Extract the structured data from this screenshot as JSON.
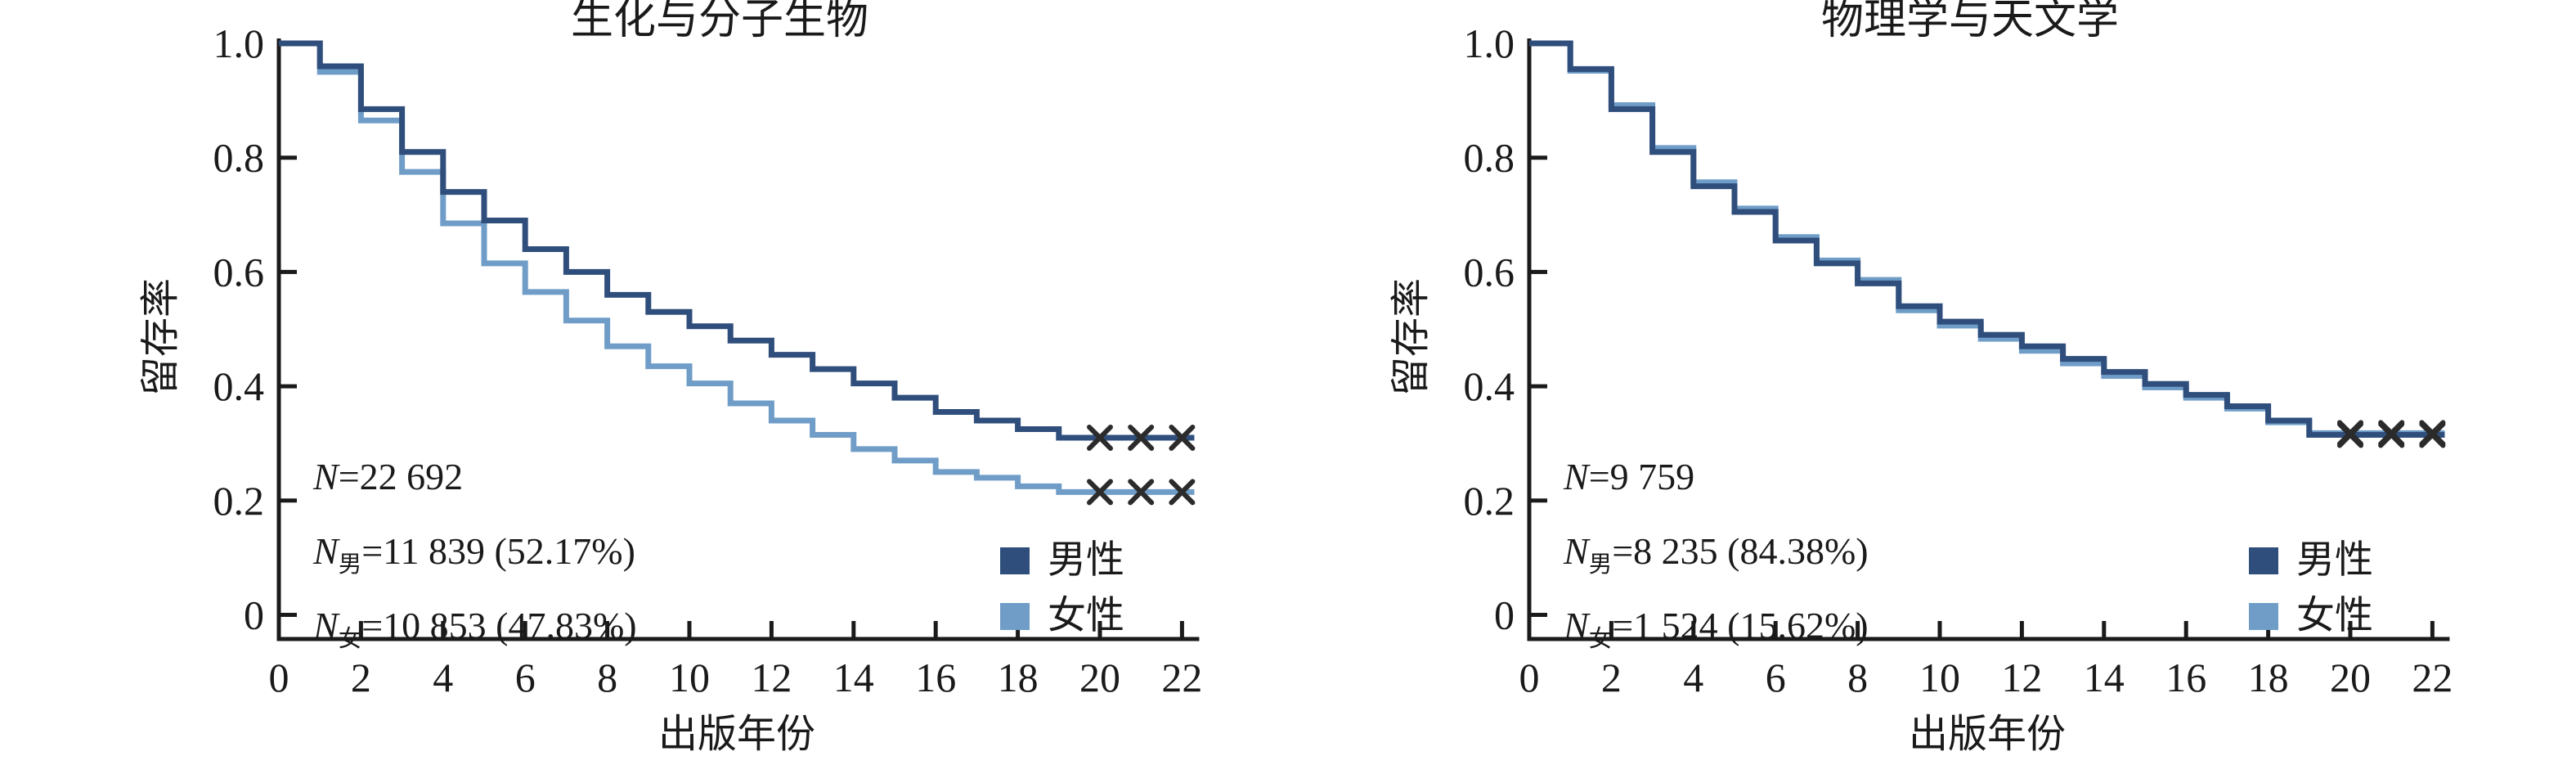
{
  "page": {
    "background": "#ffffff"
  },
  "colors": {
    "male": "#2f4e7c",
    "female": "#6f9dc8",
    "axis": "#1a1a1a",
    "text": "#1a1a1a",
    "censor": "#2b2b2b"
  },
  "chart_data": [
    {
      "type": "line",
      "subtype": "kaplan-meier-step-survival",
      "title": "生化与分子生物",
      "xlabel": "出版年份",
      "ylabel": "留存率",
      "xlim": [
        0,
        22.3
      ],
      "ylim": [
        0,
        1.0
      ],
      "grid": false,
      "legend_position": "lower-right-inside",
      "x_axis": {
        "tick_values": [
          0,
          2,
          4,
          6,
          8,
          10,
          12,
          14,
          16,
          18,
          20,
          22
        ],
        "tick_labels": [
          "0",
          "2",
          "4",
          "6",
          "8",
          "10",
          "12",
          "14",
          "16",
          "18",
          "20",
          "22"
        ]
      },
      "y_axis": {
        "tick_values": [
          1.0,
          0.8,
          0.6,
          0.4,
          0.2,
          0
        ],
        "tick_labels": [
          "1.0",
          "0.8",
          "0.6",
          "0.4",
          "0.2",
          "0"
        ]
      },
      "step_x": [
        0,
        1,
        2,
        3,
        4,
        5,
        6,
        7,
        8,
        9,
        10,
        11,
        12,
        13,
        14,
        15,
        16,
        17,
        18,
        19,
        20,
        21,
        22
      ],
      "series": [
        {
          "name": "男性",
          "color": "#2f4e7c",
          "values": [
            1.0,
            0.96,
            0.885,
            0.81,
            0.74,
            0.69,
            0.64,
            0.6,
            0.56,
            0.53,
            0.505,
            0.48,
            0.455,
            0.43,
            0.405,
            0.38,
            0.355,
            0.34,
            0.325,
            0.31,
            0.31,
            0.31,
            0.31
          ],
          "censor_x": [
            20,
            21,
            22
          ]
        },
        {
          "name": "女性",
          "color": "#6f9dc8",
          "values": [
            1.0,
            0.95,
            0.865,
            0.775,
            0.685,
            0.615,
            0.565,
            0.515,
            0.47,
            0.435,
            0.405,
            0.37,
            0.34,
            0.315,
            0.29,
            0.27,
            0.25,
            0.24,
            0.225,
            0.215,
            0.215,
            0.215,
            0.215
          ],
          "censor_x": [
            20,
            21,
            22
          ]
        }
      ],
      "annotation": [
        {
          "sym": "N",
          "sub": "",
          "rest": "=22 692"
        },
        {
          "sym": "N",
          "sub": "男",
          "rest": "=11 839 (52.17%)"
        },
        {
          "sym": "N",
          "sub": "女",
          "rest": "=10 853 (47.83%)"
        }
      ]
    },
    {
      "type": "line",
      "subtype": "kaplan-meier-step-survival",
      "title": "物理学与天文学",
      "xlabel": "出版年份",
      "ylabel": "留存率",
      "xlim": [
        0,
        22.3
      ],
      "ylim": [
        0,
        1.0
      ],
      "grid": false,
      "legend_position": "lower-right-inside",
      "x_axis": {
        "tick_values": [
          0,
          2,
          4,
          6,
          8,
          10,
          12,
          14,
          16,
          18,
          20,
          22
        ],
        "tick_labels": [
          "0",
          "2",
          "4",
          "6",
          "8",
          "10",
          "12",
          "14",
          "16",
          "18",
          "20",
          "22"
        ]
      },
      "y_axis": {
        "tick_values": [
          1.0,
          0.8,
          0.6,
          0.4,
          0.2,
          0
        ],
        "tick_labels": [
          "1.0",
          "0.8",
          "0.6",
          "0.4",
          "0.2",
          "0"
        ]
      },
      "step_x": [
        0,
        1,
        2,
        3,
        4,
        5,
        6,
        7,
        8,
        9,
        10,
        11,
        12,
        13,
        14,
        15,
        16,
        17,
        18,
        19,
        20,
        21,
        22
      ],
      "series": [
        {
          "name": "男性",
          "color": "#2f4e7c",
          "values": [
            1.0,
            0.955,
            0.885,
            0.81,
            0.75,
            0.705,
            0.655,
            0.615,
            0.58,
            0.54,
            0.513,
            0.49,
            0.47,
            0.448,
            0.425,
            0.404,
            0.385,
            0.365,
            0.34,
            0.315,
            0.315,
            0.315,
            0.315
          ],
          "censor_x": [
            20,
            21,
            22
          ]
        },
        {
          "name": "女性",
          "color": "#6f9dc8",
          "values": [
            1.0,
            0.952,
            0.892,
            0.817,
            0.757,
            0.711,
            0.661,
            0.62,
            0.586,
            0.533,
            0.506,
            0.483,
            0.462,
            0.44,
            0.418,
            0.398,
            0.38,
            0.361,
            0.337,
            0.318,
            0.318,
            0.318,
            0.318
          ],
          "censor_x": [
            20,
            21,
            22
          ]
        }
      ],
      "annotation": [
        {
          "sym": "N",
          "sub": "",
          "rest": "=9 759"
        },
        {
          "sym": "N",
          "sub": "男",
          "rest": "=8 235 (84.38%)"
        },
        {
          "sym": "N",
          "sub": "女",
          "rest": "=1 524 (15.62%)"
        }
      ]
    }
  ]
}
